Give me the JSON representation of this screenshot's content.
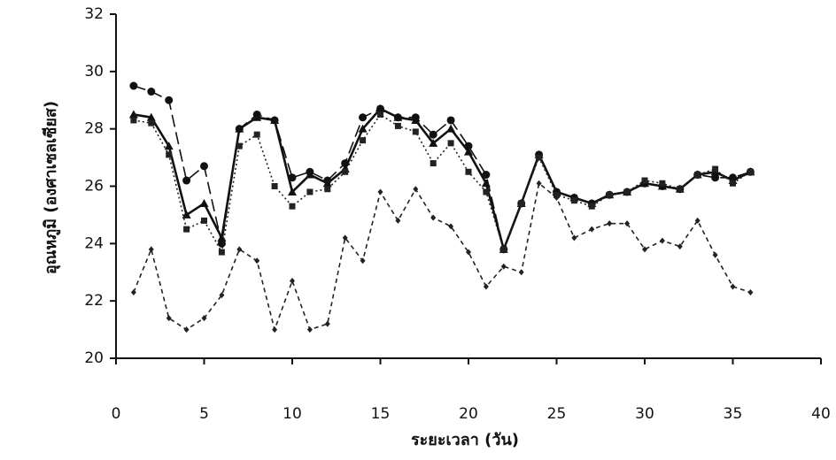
{
  "chart_data": {
    "type": "line",
    "xlabel": "ระยะเวลา (วัน)",
    "ylabel": "อุณหภูมิ (องศาเซลเซียส)",
    "x": [
      1,
      2,
      3,
      4,
      5,
      6,
      7,
      8,
      9,
      10,
      11,
      12,
      13,
      14,
      15,
      16,
      17,
      18,
      19,
      20,
      21,
      22,
      23,
      24,
      25,
      26,
      27,
      28,
      29,
      30,
      31,
      32,
      33,
      34,
      35,
      36
    ],
    "xlim": [
      0,
      40
    ],
    "xticks": [
      0,
      5,
      10,
      15,
      20,
      25,
      30,
      35,
      40
    ],
    "ylim": [
      20,
      32
    ],
    "yticks": [
      20,
      22,
      24,
      26,
      28,
      30,
      32
    ],
    "series": [
      {
        "color": "#111111",
        "dash": "14 6",
        "marker": "circle",
        "values": [
          29.5,
          29.3,
          29.0,
          26.2,
          26.7,
          24.0,
          28.0,
          28.5,
          28.3,
          26.3,
          26.5,
          26.2,
          26.8,
          28.4,
          28.7,
          28.4,
          28.4,
          27.8,
          28.3,
          27.4,
          26.4,
          23.8,
          25.4,
          27.1,
          25.8,
          25.6,
          25.4,
          25.7,
          25.8,
          26.1,
          26.0,
          25.9,
          26.4,
          26.3,
          26.3,
          26.5
        ]
      },
      {
        "color": "#111111",
        "dash": "none",
        "marker": "triangle",
        "values": [
          28.5,
          28.4,
          27.4,
          25.0,
          25.4,
          24.2,
          28.0,
          28.4,
          28.3,
          25.8,
          26.4,
          26.1,
          26.6,
          28.0,
          28.7,
          28.4,
          28.3,
          27.5,
          28.0,
          27.2,
          26.1,
          23.8,
          25.4,
          27.1,
          25.8,
          25.6,
          25.4,
          25.7,
          25.8,
          26.1,
          26.0,
          25.9,
          26.4,
          26.5,
          26.2,
          26.5
        ]
      },
      {
        "color": "#222222",
        "dash": "2 3",
        "marker": "square",
        "values": [
          28.3,
          28.2,
          27.1,
          24.5,
          24.8,
          23.7,
          27.4,
          27.8,
          26.0,
          25.3,
          25.8,
          25.9,
          26.5,
          27.6,
          28.5,
          28.1,
          27.9,
          26.8,
          27.5,
          26.5,
          25.8,
          23.8,
          25.4,
          27.0,
          25.7,
          25.5,
          25.3,
          25.7,
          25.8,
          26.2,
          26.1,
          25.9,
          26.4,
          26.6,
          26.1,
          26.5
        ]
      },
      {
        "color": "#222222",
        "dash": "5 4",
        "marker": "diamond",
        "values": [
          22.3,
          23.8,
          21.4,
          21.0,
          21.4,
          22.2,
          23.8,
          23.4,
          21.0,
          22.7,
          21.0,
          21.2,
          24.2,
          23.4,
          25.8,
          24.8,
          25.9,
          24.9,
          24.6,
          23.7,
          22.5,
          23.2,
          23.0,
          26.1,
          25.6,
          24.2,
          24.5,
          24.7,
          24.7,
          23.8,
          24.1,
          23.9,
          24.8,
          23.6,
          22.5,
          22.3
        ]
      }
    ]
  }
}
